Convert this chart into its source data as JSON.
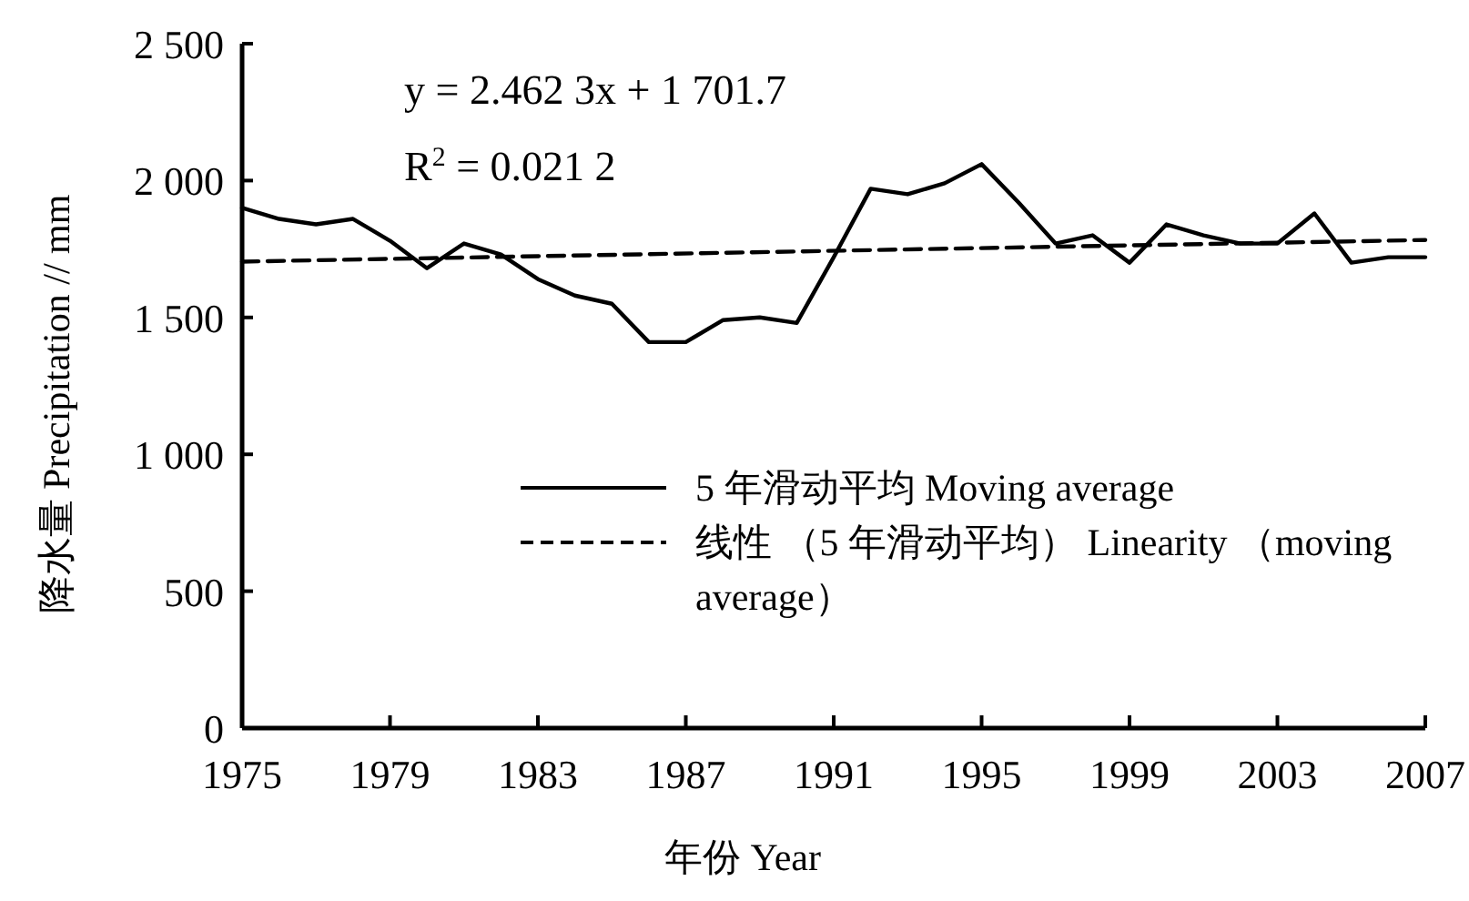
{
  "chart_data": {
    "type": "line",
    "xlabel": "年份 Year",
    "ylabel": "降水量 Precipitation // mm",
    "x": [
      1975,
      1976,
      1977,
      1978,
      1979,
      1980,
      1981,
      1982,
      1983,
      1984,
      1985,
      1986,
      1987,
      1988,
      1989,
      1990,
      1991,
      1992,
      1993,
      1994,
      1995,
      1996,
      1997,
      1998,
      1999,
      2000,
      2001,
      2002,
      2003,
      2004,
      2005,
      2006,
      2007
    ],
    "series": [
      {
        "name": "5 年滑动平均  Moving average",
        "color": "#000000",
        "line_style": "solid",
        "values": [
          1900,
          1860,
          1840,
          1860,
          1780,
          1680,
          1770,
          1730,
          1640,
          1580,
          1550,
          1410,
          1410,
          1490,
          1500,
          1480,
          1720,
          1970,
          1950,
          1990,
          2060,
          1920,
          1770,
          1800,
          1700,
          1840,
          1800,
          1770,
          1770,
          1880,
          1700,
          1720,
          1720
        ]
      },
      {
        "name": "线性 （5 年滑动平均） Linearity （moving average）",
        "color": "#000000",
        "line_style": "dashed",
        "x": [
          1975,
          2007
        ],
        "values": [
          1704,
          1783
        ]
      }
    ],
    "xlim": [
      1975,
      2007
    ],
    "xticks": [
      1975,
      1979,
      1983,
      1987,
      1991,
      1995,
      1999,
      2003,
      2007
    ],
    "ylim": [
      0,
      2500
    ],
    "yticks": [
      0,
      500,
      {
        "value": 1000,
        "label": "1 000"
      },
      {
        "value": 1500,
        "label": "1 500"
      },
      {
        "value": 2000,
        "label": "2 000"
      },
      {
        "value": 2500,
        "label": "2 500"
      }
    ],
    "annotations": [
      "y = 2.462 3x + 1 701.7",
      "R$^{2}$ = 0.021 2"
    ],
    "legend": "bottom right",
    "grid": false
  }
}
